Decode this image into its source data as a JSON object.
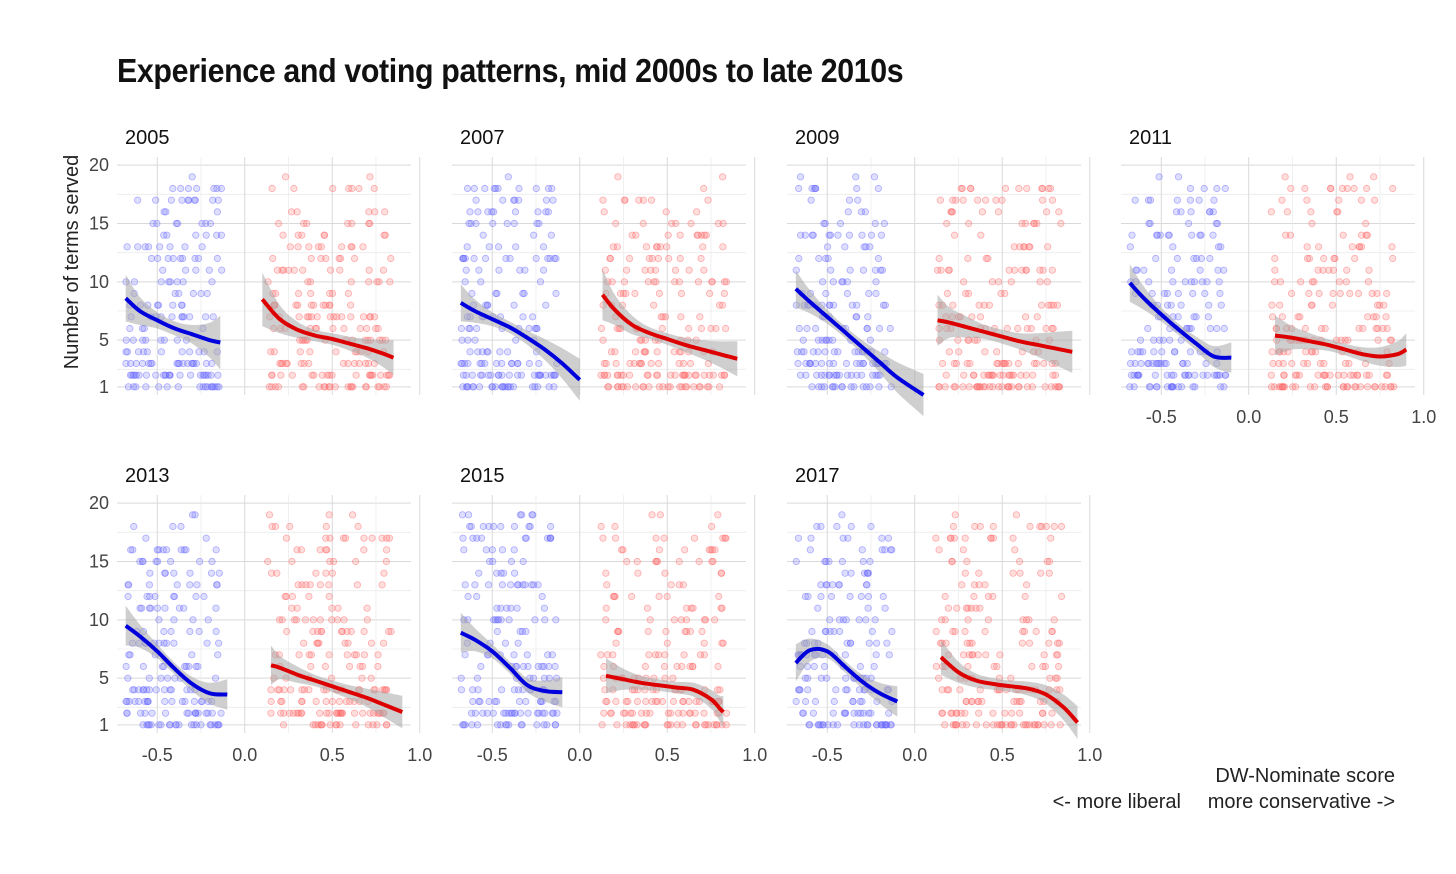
{
  "title": "Experience and voting patterns, mid 2000s to late 2010s",
  "caption": {
    "line1": "DW-Nominate score",
    "line2_left": "<- more liberal",
    "line2_right": "more conservative ->"
  },
  "colors": {
    "democrat": "#0000dd",
    "republican": "#dd0000",
    "ribbon": "#a8a8a8",
    "grid": "#d9d9d9",
    "points_dem": "#6a6aff",
    "points_rep": "#ff6a6a"
  },
  "chart_data": {
    "type": "scatter",
    "facet_by": "year",
    "xlabel": "",
    "ylabel": "Number of terms served",
    "xlim": [
      -0.73,
      0.95
    ],
    "ylim": [
      0.3,
      20.7
    ],
    "xticks": [
      "-0.5",
      "0.0",
      "0.5",
      "1.0"
    ],
    "xtick_values": [
      -0.5,
      0,
      0.5,
      1.0
    ],
    "yticks": [
      "1",
      "5",
      "10",
      "15",
      "20"
    ],
    "ytick_values": [
      1,
      5,
      10,
      15,
      20
    ],
    "grid": true,
    "series": [
      {
        "key": "dem",
        "party": "democrat"
      },
      {
        "key": "rep",
        "party": "republican"
      }
    ],
    "facets": [
      {
        "year": "2005",
        "dem": {
          "x": [
            -0.68,
            -0.6,
            -0.5,
            -0.4,
            -0.3,
            -0.2,
            -0.14
          ],
          "y": [
            8.6,
            7.5,
            6.7,
            6.0,
            5.5,
            5.0,
            4.8
          ],
          "band": [
            2.0,
            1.2,
            0.7,
            0.6,
            0.8,
            1.5,
            2.3
          ]
        },
        "rep": {
          "x": [
            0.1,
            0.2,
            0.3,
            0.4,
            0.5,
            0.6,
            0.7,
            0.8,
            0.85
          ],
          "y": [
            8.5,
            6.8,
            5.9,
            5.4,
            5.1,
            4.7,
            4.3,
            3.8,
            3.5
          ],
          "band": [
            2.3,
            1.2,
            0.7,
            0.5,
            0.5,
            0.6,
            0.8,
            1.2,
            1.5
          ]
        }
      },
      {
        "year": "2007",
        "dem": {
          "x": [
            -0.68,
            -0.6,
            -0.5,
            -0.4,
            -0.3,
            -0.2,
            -0.1,
            0.0
          ],
          "y": [
            8.2,
            7.5,
            6.8,
            6.1,
            5.2,
            4.2,
            3.0,
            1.6
          ],
          "band": [
            1.6,
            1.0,
            0.6,
            0.5,
            0.6,
            0.9,
            1.3,
            1.8
          ]
        },
        "rep": {
          "x": [
            0.13,
            0.2,
            0.3,
            0.4,
            0.5,
            0.6,
            0.7,
            0.8,
            0.9
          ],
          "y": [
            8.9,
            7.6,
            6.3,
            5.6,
            5.1,
            4.6,
            4.2,
            3.8,
            3.4
          ],
          "band": [
            2.2,
            1.3,
            0.8,
            0.5,
            0.5,
            0.6,
            0.8,
            1.1,
            1.5
          ]
        }
      },
      {
        "year": "2009",
        "dem": {
          "x": [
            -0.68,
            -0.6,
            -0.5,
            -0.4,
            -0.3,
            -0.2,
            -0.1,
            0.05
          ],
          "y": [
            9.4,
            8.3,
            7.0,
            5.7,
            4.4,
            3.1,
            1.8,
            0.3
          ],
          "band": [
            1.6,
            1.0,
            0.6,
            0.5,
            0.6,
            0.9,
            1.3,
            1.8
          ]
        },
        "rep": {
          "x": [
            0.13,
            0.2,
            0.3,
            0.4,
            0.5,
            0.6,
            0.7,
            0.8,
            0.9
          ],
          "y": [
            6.7,
            6.5,
            6.1,
            5.7,
            5.3,
            4.9,
            4.6,
            4.3,
            4.0
          ],
          "band": [
            2.2,
            1.3,
            0.9,
            0.6,
            0.6,
            0.7,
            1.0,
            1.4,
            1.8
          ]
        }
      },
      {
        "year": "2011",
        "dem": {
          "x": [
            -0.68,
            -0.6,
            -0.5,
            -0.4,
            -0.3,
            -0.2,
            -0.1
          ],
          "y": [
            9.9,
            8.6,
            7.2,
            5.9,
            4.7,
            3.6,
            3.5
          ],
          "band": [
            1.6,
            1.0,
            0.6,
            0.5,
            0.6,
            0.9,
            1.3
          ]
        },
        "rep": {
          "x": [
            0.15,
            0.25,
            0.35,
            0.45,
            0.55,
            0.65,
            0.75,
            0.85,
            0.9
          ],
          "y": [
            5.4,
            5.2,
            4.9,
            4.6,
            4.2,
            3.8,
            3.6,
            3.8,
            4.2
          ],
          "band": [
            1.7,
            1.0,
            0.7,
            0.5,
            0.5,
            0.6,
            0.8,
            1.1,
            1.4
          ]
        }
      },
      {
        "year": "2013",
        "dem": {
          "x": [
            -0.68,
            -0.6,
            -0.5,
            -0.4,
            -0.3,
            -0.2,
            -0.1
          ],
          "y": [
            9.5,
            8.6,
            7.3,
            5.8,
            4.5,
            3.7,
            3.6
          ],
          "band": [
            1.7,
            1.0,
            0.6,
            0.5,
            0.6,
            0.9,
            1.3
          ]
        },
        "rep": {
          "x": [
            0.15,
            0.2,
            0.3,
            0.4,
            0.5,
            0.6,
            0.7,
            0.8,
            0.9
          ],
          "y": [
            6.1,
            5.9,
            5.3,
            4.8,
            4.3,
            3.8,
            3.3,
            2.7,
            2.1
          ],
          "band": [
            1.7,
            1.0,
            0.7,
            0.5,
            0.5,
            0.6,
            0.8,
            1.1,
            1.4
          ]
        }
      },
      {
        "year": "2015",
        "dem": {
          "x": [
            -0.68,
            -0.6,
            -0.5,
            -0.4,
            -0.3,
            -0.2,
            -0.1
          ],
          "y": [
            8.9,
            8.3,
            7.3,
            5.9,
            4.4,
            3.9,
            3.8
          ],
          "band": [
            1.7,
            1.0,
            0.6,
            0.5,
            0.6,
            0.9,
            1.3
          ]
        },
        "rep": {
          "x": [
            0.15,
            0.25,
            0.35,
            0.45,
            0.55,
            0.65,
            0.75,
            0.8,
            0.82
          ],
          "y": [
            5.2,
            4.9,
            4.6,
            4.4,
            4.2,
            4.0,
            3.2,
            2.4,
            2.1
          ],
          "band": [
            1.5,
            0.9,
            0.6,
            0.5,
            0.5,
            0.6,
            0.8,
            1.1,
            1.4
          ]
        }
      },
      {
        "year": "2017",
        "dem": {
          "x": [
            -0.68,
            -0.6,
            -0.5,
            -0.4,
            -0.3,
            -0.2,
            -0.1
          ],
          "y": [
            6.3,
            7.4,
            7.3,
            6.0,
            4.7,
            3.7,
            3.0
          ],
          "band": [
            1.6,
            1.0,
            0.6,
            0.5,
            0.6,
            0.9,
            1.3
          ]
        },
        "rep": {
          "x": [
            0.15,
            0.25,
            0.35,
            0.45,
            0.55,
            0.65,
            0.75,
            0.85,
            0.93
          ],
          "y": [
            6.8,
            5.5,
            4.8,
            4.5,
            4.3,
            4.1,
            3.6,
            2.5,
            1.2
          ],
          "band": [
            1.5,
            0.9,
            0.6,
            0.5,
            0.5,
            0.6,
            0.8,
            1.1,
            1.4
          ]
        }
      }
    ]
  }
}
